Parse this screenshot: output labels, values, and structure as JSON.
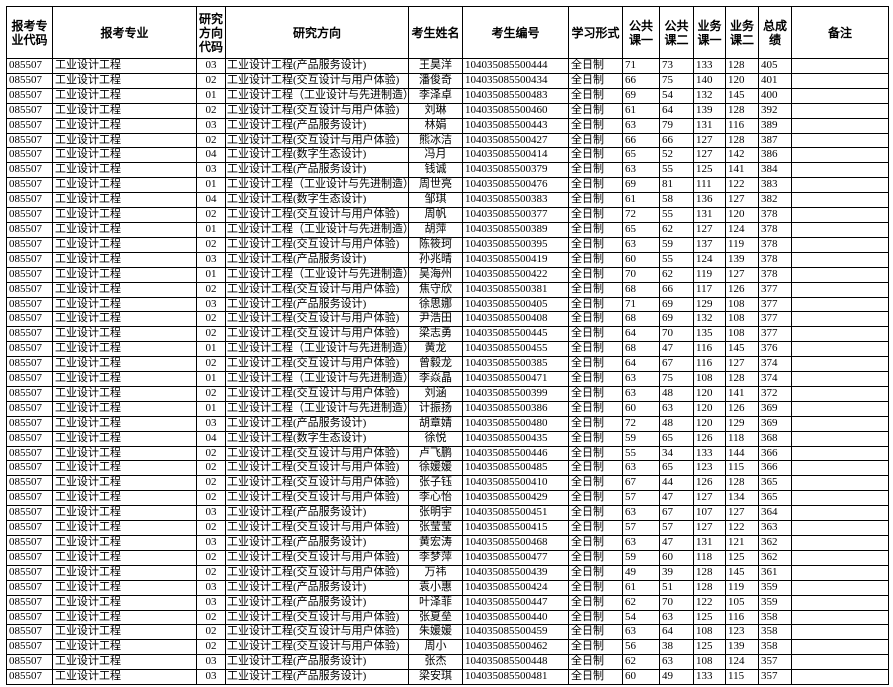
{
  "table": {
    "header": [
      "报考专业代码",
      "报考专业",
      "研究方向代码",
      "研究方向",
      "考生姓名",
      "考生编号",
      "学习形式",
      "公共课一",
      "公共课二",
      "业务课一",
      "业务课二",
      "总成绩",
      "备注"
    ],
    "rows": [
      [
        "085507",
        "工业设计工程",
        "03",
        "工业设计工程(产品服务设计)",
        "王昊洋",
        "104035085500444",
        "全日制",
        "71",
        "73",
        "133",
        "128",
        "405"
      ],
      [
        "085507",
        "工业设计工程",
        "02",
        "工业设计工程(交互设计与用户体验)",
        "潘俊奇",
        "104035085500434",
        "全日制",
        "66",
        "75",
        "140",
        "120",
        "401"
      ],
      [
        "085507",
        "工业设计工程",
        "01",
        "工业设计工程（工业设计与先进制造）",
        "李泽卓",
        "104035085500483",
        "全日制",
        "69",
        "54",
        "132",
        "145",
        "400"
      ],
      [
        "085507",
        "工业设计工程",
        "02",
        "工业设计工程(交互设计与用户体验)",
        "刘琳",
        "104035085500460",
        "全日制",
        "61",
        "64",
        "139",
        "128",
        "392"
      ],
      [
        "085507",
        "工业设计工程",
        "03",
        "工业设计工程(产品服务设计)",
        "林娟",
        "104035085500443",
        "全日制",
        "63",
        "79",
        "131",
        "116",
        "389"
      ],
      [
        "085507",
        "工业设计工程",
        "02",
        "工业设计工程(交互设计与用户体验)",
        "熊冰洁",
        "104035085500427",
        "全日制",
        "66",
        "66",
        "127",
        "128",
        "387"
      ],
      [
        "085507",
        "工业设计工程",
        "04",
        "工业设计工程(数字生态设计)",
        "冯月",
        "104035085500414",
        "全日制",
        "65",
        "52",
        "127",
        "142",
        "386"
      ],
      [
        "085507",
        "工业设计工程",
        "03",
        "工业设计工程(产品服务设计)",
        "钱诚",
        "104035085500379",
        "全日制",
        "63",
        "55",
        "125",
        "141",
        "384"
      ],
      [
        "085507",
        "工业设计工程",
        "01",
        "工业设计工程（工业设计与先进制造）",
        "周世亮",
        "104035085500476",
        "全日制",
        "69",
        "81",
        "111",
        "122",
        "383"
      ],
      [
        "085507",
        "工业设计工程",
        "04",
        "工业设计工程(数字生态设计)",
        "邹琪",
        "104035085500383",
        "全日制",
        "61",
        "58",
        "136",
        "127",
        "382"
      ],
      [
        "085507",
        "工业设计工程",
        "02",
        "工业设计工程(交互设计与用户体验)",
        "周帆",
        "104035085500377",
        "全日制",
        "72",
        "55",
        "131",
        "120",
        "378"
      ],
      [
        "085507",
        "工业设计工程",
        "01",
        "工业设计工程（工业设计与先进制造）",
        "胡萍",
        "104035085500389",
        "全日制",
        "65",
        "62",
        "127",
        "124",
        "378"
      ],
      [
        "085507",
        "工业设计工程",
        "02",
        "工业设计工程(交互设计与用户体验)",
        "陈筱珂",
        "104035085500395",
        "全日制",
        "63",
        "59",
        "137",
        "119",
        "378"
      ],
      [
        "085507",
        "工业设计工程",
        "03",
        "工业设计工程(产品服务设计)",
        "孙兆晴",
        "104035085500419",
        "全日制",
        "60",
        "55",
        "124",
        "139",
        "378"
      ],
      [
        "085507",
        "工业设计工程",
        "01",
        "工业设计工程（工业设计与先进制造）",
        "吴海州",
        "104035085500422",
        "全日制",
        "70",
        "62",
        "119",
        "127",
        "378"
      ],
      [
        "085507",
        "工业设计工程",
        "02",
        "工业设计工程(交互设计与用户体验)",
        "焦守欣",
        "104035085500381",
        "全日制",
        "68",
        "66",
        "117",
        "126",
        "377"
      ],
      [
        "085507",
        "工业设计工程",
        "03",
        "工业设计工程(产品服务设计)",
        "徐思娜",
        "104035085500405",
        "全日制",
        "71",
        "69",
        "129",
        "108",
        "377"
      ],
      [
        "085507",
        "工业设计工程",
        "02",
        "工业设计工程(交互设计与用户体验)",
        "尹浩田",
        "104035085500408",
        "全日制",
        "68",
        "69",
        "132",
        "108",
        "377"
      ],
      [
        "085507",
        "工业设计工程",
        "02",
        "工业设计工程(交互设计与用户体验)",
        "梁志勇",
        "104035085500445",
        "全日制",
        "64",
        "70",
        "135",
        "108",
        "377"
      ],
      [
        "085507",
        "工业设计工程",
        "01",
        "工业设计工程（工业设计与先进制造）",
        "黄龙",
        "104035085500455",
        "全日制",
        "68",
        "47",
        "116",
        "145",
        "376"
      ],
      [
        "085507",
        "工业设计工程",
        "02",
        "工业设计工程(交互设计与用户体验)",
        "曾毅龙",
        "104035085500385",
        "全日制",
        "64",
        "67",
        "116",
        "127",
        "374"
      ],
      [
        "085507",
        "工业设计工程",
        "01",
        "工业设计工程（工业设计与先进制造）",
        "李焱晶",
        "104035085500471",
        "全日制",
        "63",
        "75",
        "108",
        "128",
        "374"
      ],
      [
        "085507",
        "工业设计工程",
        "02",
        "工业设计工程(交互设计与用户体验)",
        "刘涵",
        "104035085500399",
        "全日制",
        "63",
        "48",
        "120",
        "141",
        "372"
      ],
      [
        "085507",
        "工业设计工程",
        "01",
        "工业设计工程（工业设计与先进制造）",
        "计振扬",
        "104035085500386",
        "全日制",
        "60",
        "63",
        "120",
        "126",
        "369"
      ],
      [
        "085507",
        "工业设计工程",
        "03",
        "工业设计工程(产品服务设计)",
        "胡章婧",
        "104035085500480",
        "全日制",
        "72",
        "48",
        "120",
        "129",
        "369"
      ],
      [
        "085507",
        "工业设计工程",
        "04",
        "工业设计工程(数字生态设计)",
        "徐悦",
        "104035085500435",
        "全日制",
        "59",
        "65",
        "126",
        "118",
        "368"
      ],
      [
        "085507",
        "工业设计工程",
        "02",
        "工业设计工程(交互设计与用户体验)",
        "卢飞鹏",
        "104035085500446",
        "全日制",
        "55",
        "34",
        "133",
        "144",
        "366"
      ],
      [
        "085507",
        "工业设计工程",
        "02",
        "工业设计工程(交互设计与用户体验)",
        "徐媛媛",
        "104035085500485",
        "全日制",
        "63",
        "65",
        "123",
        "115",
        "366"
      ],
      [
        "085507",
        "工业设计工程",
        "02",
        "工业设计工程(交互设计与用户体验)",
        "张子钰",
        "104035085500410",
        "全日制",
        "67",
        "44",
        "126",
        "128",
        "365"
      ],
      [
        "085507",
        "工业设计工程",
        "02",
        "工业设计工程(交互设计与用户体验)",
        "李心怡",
        "104035085500429",
        "全日制",
        "57",
        "47",
        "127",
        "134",
        "365"
      ],
      [
        "085507",
        "工业设计工程",
        "03",
        "工业设计工程(产品服务设计)",
        "张明宇",
        "104035085500451",
        "全日制",
        "63",
        "67",
        "107",
        "127",
        "364"
      ],
      [
        "085507",
        "工业设计工程",
        "02",
        "工业设计工程(交互设计与用户体验)",
        "张莹莹",
        "104035085500415",
        "全日制",
        "57",
        "57",
        "127",
        "122",
        "363"
      ],
      [
        "085507",
        "工业设计工程",
        "03",
        "工业设计工程(产品服务设计)",
        "黄宏涛",
        "104035085500468",
        "全日制",
        "63",
        "47",
        "131",
        "121",
        "362"
      ],
      [
        "085507",
        "工业设计工程",
        "02",
        "工业设计工程(交互设计与用户体验)",
        "李梦萍",
        "104035085500477",
        "全日制",
        "59",
        "60",
        "118",
        "125",
        "362"
      ],
      [
        "085507",
        "工业设计工程",
        "02",
        "工业设计工程(交互设计与用户体验)",
        "万祎",
        "104035085500439",
        "全日制",
        "49",
        "39",
        "128",
        "145",
        "361"
      ],
      [
        "085507",
        "工业设计工程",
        "03",
        "工业设计工程(产品服务设计)",
        "袁小惠",
        "104035085500424",
        "全日制",
        "61",
        "51",
        "128",
        "119",
        "359"
      ],
      [
        "085507",
        "工业设计工程",
        "03",
        "工业设计工程(产品服务设计)",
        "叶泽菲",
        "104035085500447",
        "全日制",
        "62",
        "70",
        "122",
        "105",
        "359"
      ],
      [
        "085507",
        "工业设计工程",
        "02",
        "工业设计工程(交互设计与用户体验)",
        "张夏垒",
        "104035085500440",
        "全日制",
        "54",
        "63",
        "125",
        "116",
        "358"
      ],
      [
        "085507",
        "工业设计工程",
        "02",
        "工业设计工程(交互设计与用户体验)",
        "朱媛媛",
        "104035085500459",
        "全日制",
        "63",
        "64",
        "108",
        "123",
        "358"
      ],
      [
        "085507",
        "工业设计工程",
        "02",
        "工业设计工程(交互设计与用户体验)",
        "周小",
        "104035085500462",
        "全日制",
        "56",
        "38",
        "125",
        "139",
        "358"
      ],
      [
        "085507",
        "工业设计工程",
        "03",
        "工业设计工程(产品服务设计)",
        "张杰",
        "104035085500448",
        "全日制",
        "62",
        "63",
        "108",
        "124",
        "357"
      ],
      [
        "085507",
        "工业设计工程",
        "03",
        "工业设计工程(产品服务设计)",
        "梁安琪",
        "104035085500481",
        "全日制",
        "60",
        "49",
        "133",
        "115",
        "357"
      ]
    ]
  }
}
